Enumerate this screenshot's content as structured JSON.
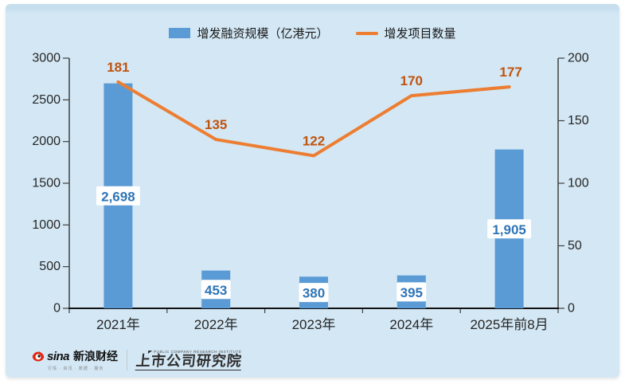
{
  "colors": {
    "panel_bg": "#d3e7f4",
    "panel_top_edge": "#c6deee",
    "bar": "#5b9bd5",
    "bar_label_text": "#2e75b6",
    "bar_label_bg": "#ffffff",
    "line": "#ed7d31",
    "line_label_text": "#c0540f",
    "axis": "#404040",
    "axis_bottom": "#111111",
    "tick_text": "#262626"
  },
  "chart_data": {
    "type": "bar",
    "subtype": "combo-bar-line",
    "title": "",
    "categories": [
      "2021年",
      "2022年",
      "2023年",
      "2024年",
      "2025年前8月"
    ],
    "series": [
      {
        "name": "增发融资规模（亿港元）",
        "chart": "bar",
        "axis": "left",
        "values": [
          2698,
          453,
          380,
          395,
          1905
        ],
        "value_labels": [
          "2,698",
          "453",
          "380",
          "395",
          "1,905"
        ]
      },
      {
        "name": "增发项目数量",
        "chart": "line",
        "axis": "right",
        "values": [
          181,
          135,
          122,
          170,
          177
        ],
        "value_labels": [
          "181",
          "135",
          "122",
          "170",
          "177"
        ]
      }
    ],
    "left_axis": {
      "min": 0,
      "max": 3000,
      "ticks": [
        "0",
        "500",
        "1000",
        "1500",
        "2000",
        "2500",
        "3000"
      ]
    },
    "right_axis": {
      "min": 0,
      "max": 200,
      "ticks": [
        "0",
        "50",
        "100",
        "150",
        "200"
      ]
    },
    "grid": false,
    "legend_position": "top-center"
  },
  "footer": {
    "sina": {
      "brand": "sina",
      "name": "新浪财经",
      "tagline": "行情 · 资讯 · 数据 · 服务"
    },
    "institute": {
      "en": "PUBLIC COMPANY RESEARCH INSTITUTE",
      "cn": "上市公司研究院"
    }
  }
}
